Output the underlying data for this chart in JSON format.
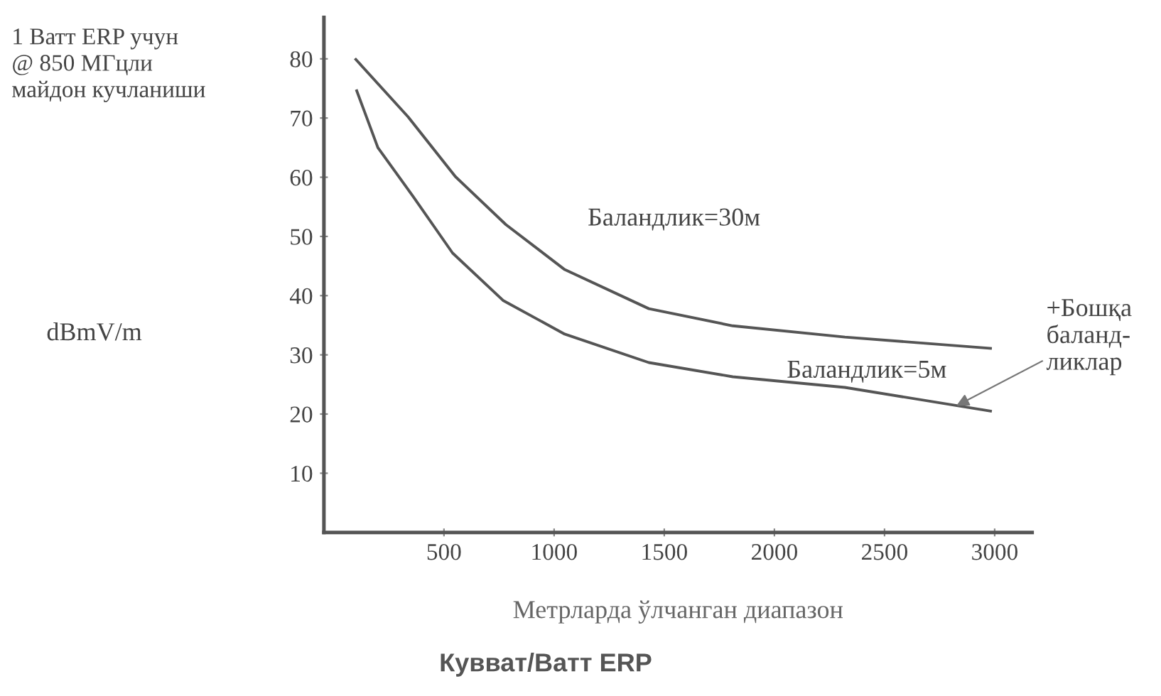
{
  "chart_data": {
    "type": "line",
    "title": "Кувват/Ватт ERP",
    "xlabel": "Метрларда ўлчанган диапазон",
    "ylabel": "1 Ватт ERP учун\n@ 850 МГцли\nмайдон кучланиши",
    "x": [
      100,
      337,
      552,
      781,
      1048,
      1430,
      1811,
      2320,
      2981
    ],
    "series": [
      {
        "name": "Баландлик=30м",
        "color": "#555555",
        "values": [
          79.9,
          70.2,
          60.1,
          52,
          44.4,
          37.8,
          34.9,
          33,
          31.1
        ]
      },
      {
        "name": "Баландлик=5м",
        "color": "#555555",
        "x": [
          104,
          200,
          361,
          539,
          768,
          1048,
          1430,
          1811,
          2320,
          2981
        ],
        "values": [
          74.6,
          65,
          56.7,
          47.2,
          39.2,
          33.5,
          28.7,
          26.3,
          24.5,
          20.5
        ]
      }
    ],
    "annotations": [
      {
        "text": "+Бошқа\nбаланд-\nликлар",
        "x": 2826,
        "y": 21.4
      },
      "dBmV/m"
    ],
    "xlim": [
      -45,
      3170
    ],
    "ylim": [
      0,
      87
    ],
    "xticks": [
      500,
      1000,
      1500,
      2000,
      2500,
      3000
    ],
    "yticks": [
      10,
      20,
      30,
      40,
      50,
      60,
      70,
      80
    ],
    "grid": false,
    "marker": "none",
    "line_style": "solid"
  }
}
